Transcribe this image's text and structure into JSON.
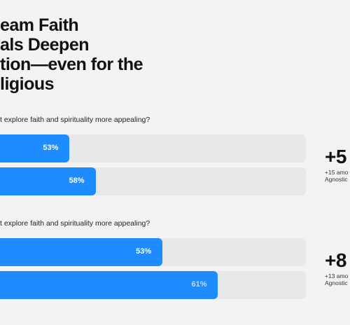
{
  "title_lines": [
    "eam Faith",
    "als Deepen",
    "tion—even for the",
    "ligious"
  ],
  "colors": {
    "accent": "#1e8cff",
    "track": "#e8e8ea"
  },
  "chart_data": [
    {
      "type": "bar",
      "question": "t explore faith and spirituality more appealing?",
      "values": [
        53,
        58
      ],
      "labels": [
        "53%",
        "58%"
      ],
      "label_colors": [
        "#ffffff",
        "#ffffff"
      ],
      "delta": "+5",
      "note": [
        "+15 amo",
        "Agnostic"
      ]
    },
    {
      "type": "bar",
      "question": "t explore faith and spirituality more appealing?",
      "values": [
        53,
        61
      ],
      "labels": [
        "53%",
        "61%"
      ],
      "label_colors": [
        "#ffffff",
        "#bcdcff"
      ],
      "delta": "+8",
      "note": [
        "+13 amo",
        "Agnostic"
      ]
    }
  ]
}
